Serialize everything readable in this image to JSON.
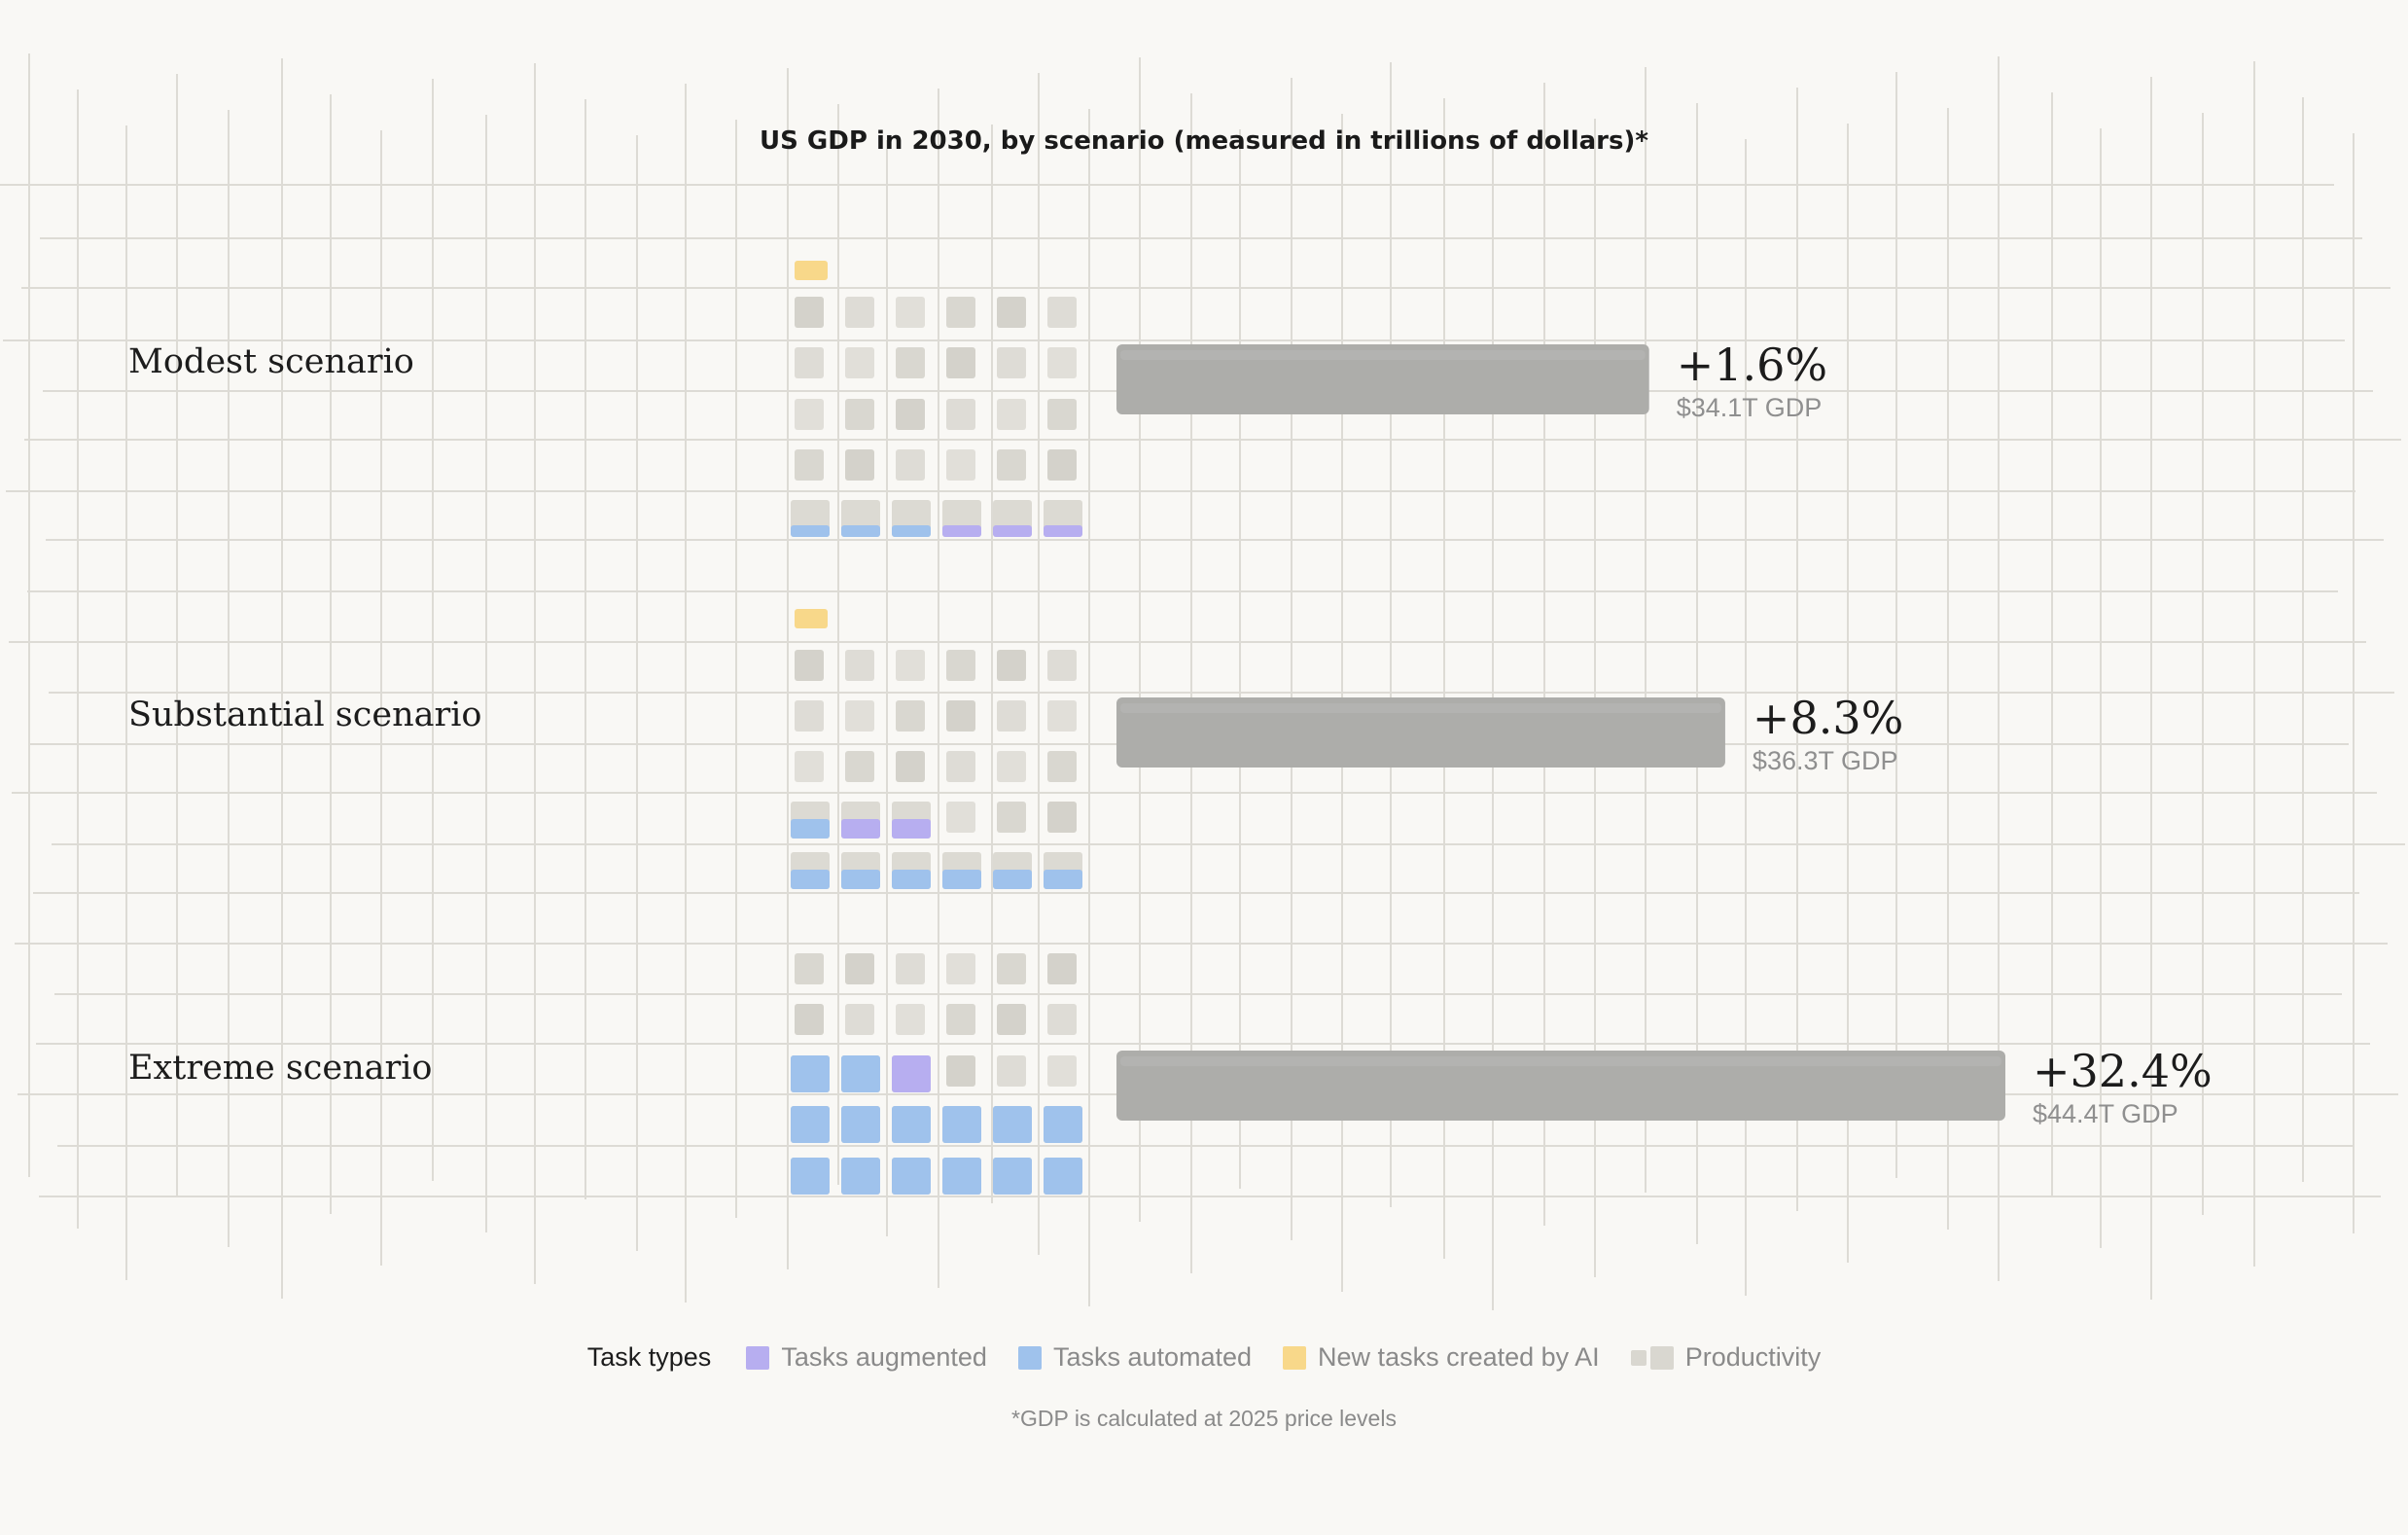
{
  "colors": {
    "background": "#f9f8f5",
    "augmented": "#b7aef0",
    "automated": "#9fc2ec",
    "new_tasks": "#f8d88a",
    "productivity": "#d9d7d0",
    "bar": "#adadaa"
  },
  "legend": {
    "title": "Task types",
    "items": [
      {
        "label": "Tasks augmented",
        "color": "#b7aef0"
      },
      {
        "label": "Tasks automated",
        "color": "#9fc2ec"
      },
      {
        "label": "New tasks created by AI",
        "color": "#f8d88a"
      },
      {
        "label": "Productivity",
        "color": "#d9d7d0"
      }
    ]
  },
  "footnote": "*GDP is calculated at 2025 price levels",
  "chart_data": {
    "type": "bar",
    "title": "US GDP in 2030, by scenario (measured in trillions of dollars)*",
    "categories": [
      "Modest scenario",
      "Substantial scenario",
      "Extreme scenario"
    ],
    "values": [
      34.1,
      36.3,
      44.4
    ],
    "value_unit": "trillions of dollars",
    "value_labels": [
      "$34.1T GDP",
      "$36.3T GDP",
      "$44.4T GDP"
    ],
    "growth_labels": [
      "+1.6%",
      "+8.3%",
      "+32.4%"
    ],
    "waffle": {
      "task_types": [
        "Tasks augmented",
        "Tasks automated",
        "New tasks created by AI",
        "Productivity"
      ],
      "columns": 6,
      "rows": [
        [
          [
            "new"
          ],
          [
            "prod",
            "prod",
            "prod",
            "prod",
            "prod",
            "prod"
          ],
          [
            "prod",
            "prod",
            "prod",
            "prod",
            "prod",
            "prod"
          ],
          [
            "prod",
            "prod",
            "prod",
            "prod",
            "prod",
            "prod"
          ],
          [
            "prod",
            "prod",
            "prod",
            "prod",
            "prod",
            "prod"
          ],
          [
            "auto-low",
            "auto-low",
            "auto-low",
            "aug-low",
            "aug-low",
            "aug-low"
          ]
        ],
        [
          [
            "new"
          ],
          [
            "prod",
            "prod",
            "prod",
            "prod",
            "prod",
            "prod"
          ],
          [
            "prod",
            "prod",
            "prod",
            "prod",
            "prod",
            "prod"
          ],
          [
            "prod",
            "prod",
            "prod",
            "prod",
            "prod",
            "prod"
          ],
          [
            "auto-mid",
            "aug-mid",
            "aug-mid",
            "prod",
            "prod",
            "prod"
          ],
          [
            "auto-mid",
            "auto-mid",
            "auto-mid",
            "auto-mid",
            "auto-mid",
            "auto-mid"
          ]
        ],
        [
          [
            "prod",
            "prod",
            "prod",
            "prod",
            "prod",
            "prod"
          ],
          [
            "prod",
            "prod",
            "prod",
            "prod",
            "prod",
            "prod"
          ],
          [
            "auto-full",
            "auto-full",
            "aug-full",
            "prod",
            "prod",
            "prod"
          ],
          [
            "auto-full",
            "auto-full",
            "auto-full",
            "auto-full",
            "auto-full",
            "auto-full"
          ],
          [
            "auto-full",
            "auto-full",
            "auto-full",
            "auto-full",
            "auto-full",
            "auto-full"
          ]
        ]
      ]
    },
    "grid": true,
    "legend_position": "bottom"
  }
}
